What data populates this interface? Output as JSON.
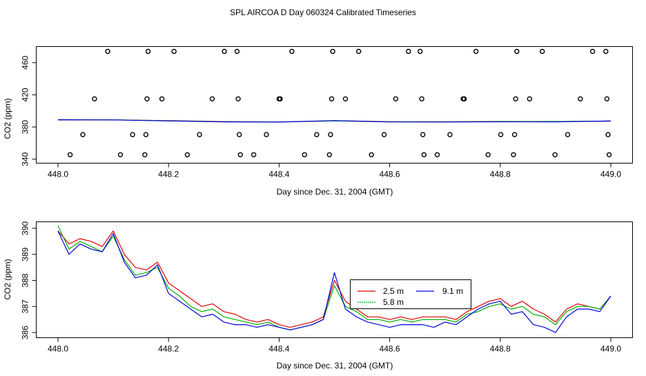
{
  "page": {
    "title": "SPL AIRCOA D  Day 060324  Calibrated Timeseries"
  },
  "chart_data": [
    {
      "type": "scatter",
      "title": "",
      "xlabel": "Day since Dec. 31, 2004 (GMT)",
      "ylabel": "CO2 (ppm)",
      "xlim": [
        448.0,
        449.0
      ],
      "ylim": [
        335,
        480
      ],
      "x_ticks": [
        448.0,
        448.2,
        448.4,
        448.6,
        448.8,
        449.0
      ],
      "x_tick_labels": [
        "448.0",
        "448.2",
        "448.4",
        "448.6",
        "448.8",
        "449.0"
      ],
      "y_ticks": [
        340,
        380,
        420,
        460
      ],
      "y_tick_labels": [
        "340",
        "380",
        "420",
        "460"
      ],
      "calibration_points": {
        "name": "calibration standards",
        "marker": "open-circle",
        "x": [
          448.022,
          448.045,
          448.066,
          448.09,
          448.113,
          448.135,
          448.157,
          448.159,
          448.161,
          448.163,
          448.188,
          448.21,
          448.234,
          448.256,
          448.279,
          448.301,
          448.324,
          448.326,
          448.328,
          448.33,
          448.354,
          448.377,
          448.4,
          448.402,
          448.423,
          448.446,
          448.468,
          448.491,
          448.493,
          448.495,
          448.497,
          448.52,
          448.544,
          448.567,
          448.59,
          448.611,
          448.634,
          448.655,
          448.658,
          448.66,
          448.662,
          448.686,
          448.709,
          448.733,
          448.735,
          448.756,
          448.778,
          448.801,
          448.824,
          448.826,
          448.828,
          448.83,
          448.853,
          448.876,
          448.899,
          448.922,
          448.945,
          448.967,
          448.991,
          448.993,
          448.995,
          448.997
        ],
        "y": [
          345.5,
          370.5,
          415.0,
          474.0,
          345.5,
          370.5,
          345.5,
          370.5,
          415.0,
          474.0,
          415.0,
          474.0,
          345.5,
          370.5,
          415.0,
          474.0,
          474.0,
          415.0,
          370.5,
          345.5,
          345.5,
          370.5,
          415.0,
          415.0,
          474.0,
          345.5,
          370.5,
          345.5,
          370.5,
          415.0,
          474.0,
          415.0,
          474.0,
          345.5,
          370.5,
          415.0,
          474.0,
          474.0,
          415.0,
          370.5,
          345.5,
          345.5,
          370.5,
          415.0,
          415.0,
          474.0,
          345.5,
          370.5,
          345.5,
          370.5,
          415.0,
          474.0,
          415.0,
          474.0,
          345.5,
          370.5,
          415.0,
          474.0,
          474.0,
          415.0,
          370.5,
          345.5
        ]
      },
      "series": [
        {
          "name": "2.5 m",
          "color": "#e00000",
          "x": [
            448.0,
            448.1,
            448.2,
            448.3,
            448.4,
            448.5,
            448.6,
            448.7,
            448.8,
            448.9,
            449.0
          ],
          "values": [
            388.8,
            388.9,
            387.9,
            386.7,
            386.2,
            387.8,
            386.6,
            386.5,
            386.9,
            386.7,
            387.3
          ]
        },
        {
          "name": "5.8 m",
          "color": "#00b000",
          "x": [
            448.0,
            448.1,
            448.2,
            448.3,
            448.4,
            448.5,
            448.6,
            448.7,
            448.8,
            448.9,
            449.0
          ],
          "values": [
            389.1,
            388.9,
            387.7,
            386.5,
            386.2,
            387.5,
            386.4,
            386.3,
            386.8,
            386.8,
            387.3
          ]
        },
        {
          "name": "9.1 m",
          "color": "#0000e0",
          "x": [
            448.0,
            448.1,
            448.2,
            448.3,
            448.4,
            448.5,
            448.6,
            448.7,
            448.8,
            448.9,
            449.0
          ],
          "values": [
            389.0,
            388.8,
            387.5,
            386.4,
            386.1,
            387.9,
            386.3,
            386.2,
            386.5,
            386.4,
            387.4
          ]
        }
      ]
    },
    {
      "type": "line",
      "title": "",
      "xlabel": "Day since Dec. 31, 2004 (GMT)",
      "ylabel": "CO2 (ppm)",
      "xlim": [
        448.0,
        449.0
      ],
      "ylim": [
        385.8,
        390.25
      ],
      "x_ticks": [
        448.0,
        448.2,
        448.4,
        448.6,
        448.8,
        449.0
      ],
      "x_tick_labels": [
        "448.0",
        "448.2",
        "448.4",
        "448.6",
        "448.8",
        "449.0"
      ],
      "y_ticks": [
        386,
        387,
        388,
        389,
        390
      ],
      "y_tick_labels": [
        "386",
        "387",
        "388",
        "389",
        "390"
      ],
      "legend": {
        "placement": "center-right",
        "entries": [
          "2.5 m",
          "9.1 m",
          "5.8 m"
        ]
      },
      "series": [
        {
          "name": "2.5 m",
          "color": "#e00000",
          "x": [
            448.0,
            448.02,
            448.04,
            448.06,
            448.08,
            448.1,
            448.12,
            448.14,
            448.16,
            448.18,
            448.2,
            448.22,
            448.24,
            448.26,
            448.28,
            448.3,
            448.32,
            448.34,
            448.36,
            448.38,
            448.4,
            448.42,
            448.44,
            448.46,
            448.48,
            448.5,
            448.52,
            448.54,
            448.56,
            448.58,
            448.6,
            448.62,
            448.64,
            448.66,
            448.68,
            448.7,
            448.72,
            448.74,
            448.76,
            448.78,
            448.8,
            448.82,
            448.84,
            448.86,
            448.88,
            448.9,
            448.92,
            448.94,
            448.96,
            448.98,
            449.0
          ],
          "values": [
            389.9,
            389.4,
            389.6,
            389.5,
            389.3,
            389.9,
            389.0,
            388.5,
            388.4,
            388.7,
            387.9,
            387.6,
            387.3,
            387.0,
            387.1,
            386.8,
            386.7,
            386.5,
            386.4,
            386.5,
            386.3,
            386.2,
            386.3,
            386.4,
            386.6,
            388.0,
            387.2,
            386.9,
            386.6,
            386.6,
            386.5,
            386.6,
            386.5,
            386.6,
            386.6,
            386.6,
            386.5,
            386.8,
            387.0,
            387.2,
            387.3,
            387.0,
            387.2,
            386.9,
            386.7,
            386.4,
            386.9,
            387.1,
            387.0,
            386.9,
            387.4
          ]
        },
        {
          "name": "5.8 m",
          "color": "#00b000",
          "x": [
            448.0,
            448.02,
            448.04,
            448.06,
            448.08,
            448.1,
            448.12,
            448.14,
            448.16,
            448.18,
            448.2,
            448.22,
            448.24,
            448.26,
            448.28,
            448.3,
            448.32,
            448.34,
            448.36,
            448.38,
            448.4,
            448.42,
            448.44,
            448.46,
            448.48,
            448.5,
            448.52,
            448.54,
            448.56,
            448.58,
            448.6,
            448.62,
            448.64,
            448.66,
            448.68,
            448.7,
            448.72,
            448.74,
            448.76,
            448.78,
            448.8,
            448.82,
            448.84,
            448.86,
            448.88,
            448.9,
            448.92,
            448.94,
            448.96,
            448.98,
            449.0
          ],
          "values": [
            390.1,
            389.2,
            389.5,
            389.3,
            389.1,
            389.7,
            388.8,
            388.2,
            388.3,
            388.5,
            387.7,
            387.4,
            387.0,
            386.8,
            386.9,
            386.6,
            386.5,
            386.4,
            386.3,
            386.4,
            386.2,
            386.1,
            386.2,
            386.3,
            386.5,
            387.8,
            387.0,
            386.8,
            386.5,
            386.5,
            386.4,
            386.5,
            386.4,
            386.5,
            386.5,
            386.5,
            386.4,
            386.7,
            386.8,
            387.0,
            387.1,
            386.9,
            387.0,
            386.7,
            386.6,
            386.3,
            386.8,
            387.0,
            387.0,
            386.9,
            387.4
          ]
        },
        {
          "name": "9.1 m",
          "color": "#0000e0",
          "x": [
            448.0,
            448.02,
            448.04,
            448.06,
            448.08,
            448.1,
            448.12,
            448.14,
            448.16,
            448.18,
            448.2,
            448.22,
            448.24,
            448.26,
            448.28,
            448.3,
            448.32,
            448.34,
            448.36,
            448.38,
            448.4,
            448.42,
            448.44,
            448.46,
            448.48,
            448.5,
            448.52,
            448.54,
            448.56,
            448.58,
            448.6,
            448.62,
            448.64,
            448.66,
            448.68,
            448.7,
            448.72,
            448.74,
            448.76,
            448.78,
            448.8,
            448.82,
            448.84,
            448.86,
            448.88,
            448.9,
            448.92,
            448.94,
            448.96,
            448.98,
            449.0
          ],
          "values": [
            389.9,
            389.0,
            389.4,
            389.2,
            389.1,
            389.8,
            388.7,
            388.1,
            388.2,
            388.6,
            387.5,
            387.2,
            386.9,
            386.6,
            386.7,
            386.4,
            386.3,
            386.3,
            386.2,
            386.3,
            386.2,
            386.1,
            386.2,
            386.3,
            386.5,
            388.3,
            386.9,
            386.6,
            386.4,
            386.3,
            386.2,
            386.3,
            386.3,
            386.3,
            386.2,
            386.4,
            386.3,
            386.6,
            386.9,
            387.1,
            387.2,
            386.7,
            386.8,
            386.3,
            386.2,
            386.0,
            386.6,
            386.9,
            386.9,
            386.8,
            387.4
          ]
        }
      ]
    }
  ]
}
